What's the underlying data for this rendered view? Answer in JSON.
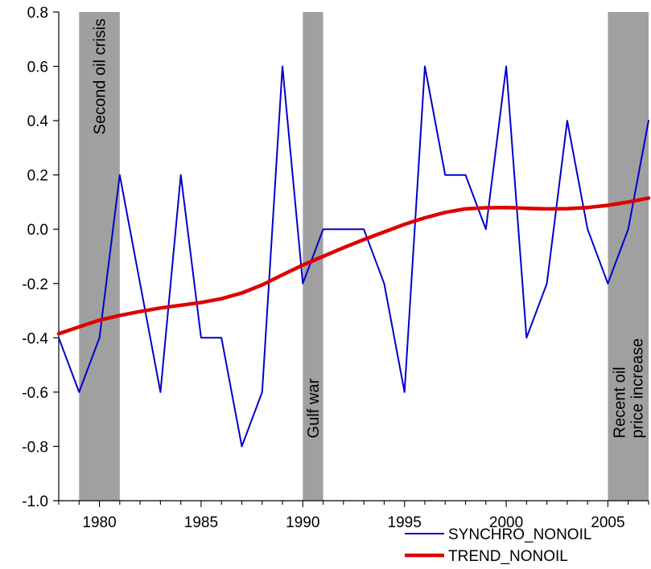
{
  "chart_data": {
    "type": "line",
    "title": "",
    "xlabel": "",
    "ylabel": "",
    "xlim": [
      1978,
      2007
    ],
    "ylim": [
      -1.0,
      0.8
    ],
    "x_ticks": [
      1980,
      1985,
      1990,
      1995,
      2000,
      2005
    ],
    "y_ticks": [
      -1.0,
      -0.8,
      -0.6,
      -0.4,
      -0.2,
      0.0,
      0.2,
      0.4,
      0.6,
      0.8
    ],
    "y_tick_labels": [
      "-1.0",
      "-0.8",
      "-0.6",
      "-0.4",
      "-0.2",
      "0.0",
      "0.2",
      "0.4",
      "0.6",
      "0.8"
    ],
    "grid": false,
    "legend_position": "bottom-right",
    "shaded_periods": [
      {
        "start": 1979,
        "end": 1981,
        "label": [
          "Second oil crisis"
        ]
      },
      {
        "start": 1990,
        "end": 1991,
        "label": [
          "Gulf war"
        ]
      },
      {
        "start": 2005,
        "end": 2007,
        "label": [
          "Recent oil",
          "price increase"
        ]
      }
    ],
    "series": [
      {
        "name": "SYNCHRO_NONOIL",
        "color": "#0000cc",
        "x": [
          1978,
          1979,
          1980,
          1981,
          1982,
          1983,
          1984,
          1985,
          1986,
          1987,
          1988,
          1989,
          1990,
          1991,
          1992,
          1993,
          1994,
          1995,
          1996,
          1997,
          1998,
          1999,
          2000,
          2001,
          2002,
          2003,
          2004,
          2005,
          2006,
          2007
        ],
        "y": [
          -0.4,
          -0.6,
          -0.4,
          0.2,
          -0.2,
          -0.6,
          0.2,
          -0.4,
          -0.4,
          -0.8,
          -0.6,
          0.6,
          -0.2,
          0.0,
          0.0,
          0.0,
          -0.2,
          -0.6,
          0.6,
          0.2,
          0.2,
          0.0,
          0.6,
          -0.4,
          -0.2,
          0.4,
          0.0,
          -0.2,
          0.0,
          0.4
        ]
      },
      {
        "name": "TREND_NONOIL",
        "color": "#dd0000",
        "x": [
          1978,
          1979,
          1980,
          1981,
          1982,
          1983,
          1984,
          1985,
          1986,
          1987,
          1988,
          1989,
          1990,
          1991,
          1992,
          1993,
          1994,
          1995,
          1996,
          1997,
          1998,
          1999,
          2000,
          2001,
          2002,
          2003,
          2004,
          2005,
          2006,
          2007
        ],
        "y": [
          -0.385,
          -0.36,
          -0.335,
          -0.318,
          -0.303,
          -0.29,
          -0.28,
          -0.27,
          -0.256,
          -0.235,
          -0.205,
          -0.168,
          -0.132,
          -0.1,
          -0.068,
          -0.038,
          -0.01,
          0.018,
          0.042,
          0.062,
          0.075,
          0.079,
          0.08,
          0.077,
          0.075,
          0.076,
          0.08,
          0.088,
          0.1,
          0.115
        ]
      }
    ]
  }
}
